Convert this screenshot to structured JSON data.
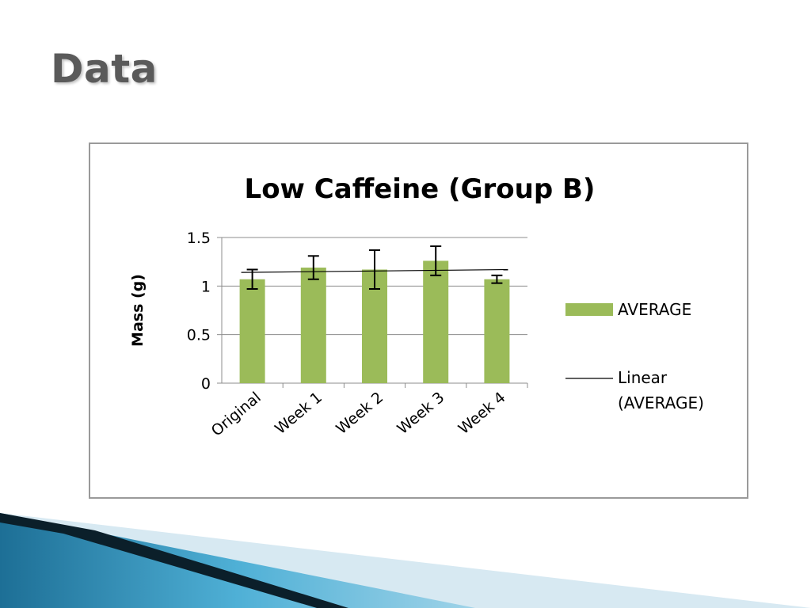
{
  "slide": {
    "title": "Data"
  },
  "colors": {
    "bar": "#9bbb59",
    "gridline": "#8c8c8c",
    "axis": "#8c8c8c",
    "title_text": "#5a5a5a",
    "deco_light": "#d7e9f2",
    "deco_blue": "#3a8fb7",
    "deco_dark": "#0b1f2a"
  },
  "chart_data": {
    "type": "bar",
    "title": "Low Caffeine (Group B)",
    "xlabel": "",
    "ylabel": "Mass (g)",
    "ylim": [
      0,
      1.5
    ],
    "yticks": [
      "0",
      "0.5",
      "1",
      "1.5"
    ],
    "ytick_values": [
      0,
      0.5,
      1,
      1.5
    ],
    "grid": true,
    "legend_position": "right",
    "categories": [
      "Original",
      "Week 1",
      "Week 2",
      "Week 3",
      "Week 4"
    ],
    "series": [
      {
        "name": "AVERAGE",
        "values": [
          1.07,
          1.19,
          1.17,
          1.26,
          1.07
        ],
        "error": [
          0.1,
          0.12,
          0.2,
          0.15,
          0.04
        ]
      }
    ],
    "trendline": {
      "name": "Linear (AVERAGE)",
      "label_lines": [
        "Linear",
        "(AVERAGE)"
      ],
      "start": 1.14,
      "end": 1.17
    }
  }
}
